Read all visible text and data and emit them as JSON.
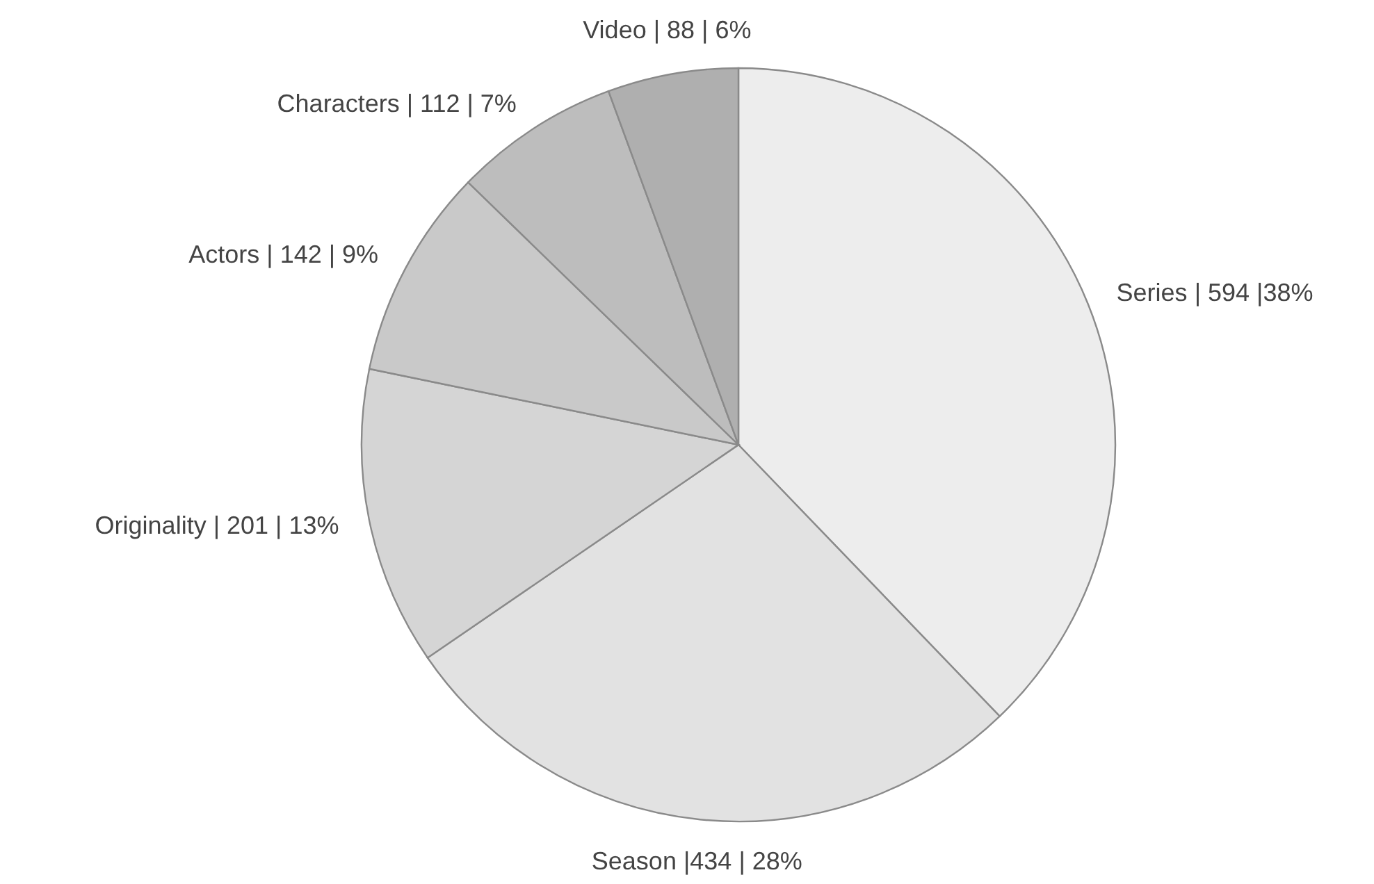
{
  "chart_data": {
    "type": "pie",
    "categories": [
      "Series",
      "Season",
      "Originality",
      "Actors",
      "Characters",
      "Video"
    ],
    "values": [
      594,
      434,
      201,
      142,
      112,
      88
    ],
    "value_labels": [
      "| 594 |38%",
      "|434 | 28%",
      "| 201 | 13%",
      "| 142 | 9%",
      "| 112 | 7%",
      "| 88 | 6%"
    ],
    "colors": [
      "#ededed",
      "#e2e2e2",
      "#d5d5d5",
      "#c9c9c9",
      "#bdbdbd",
      "#afafaf"
    ]
  }
}
